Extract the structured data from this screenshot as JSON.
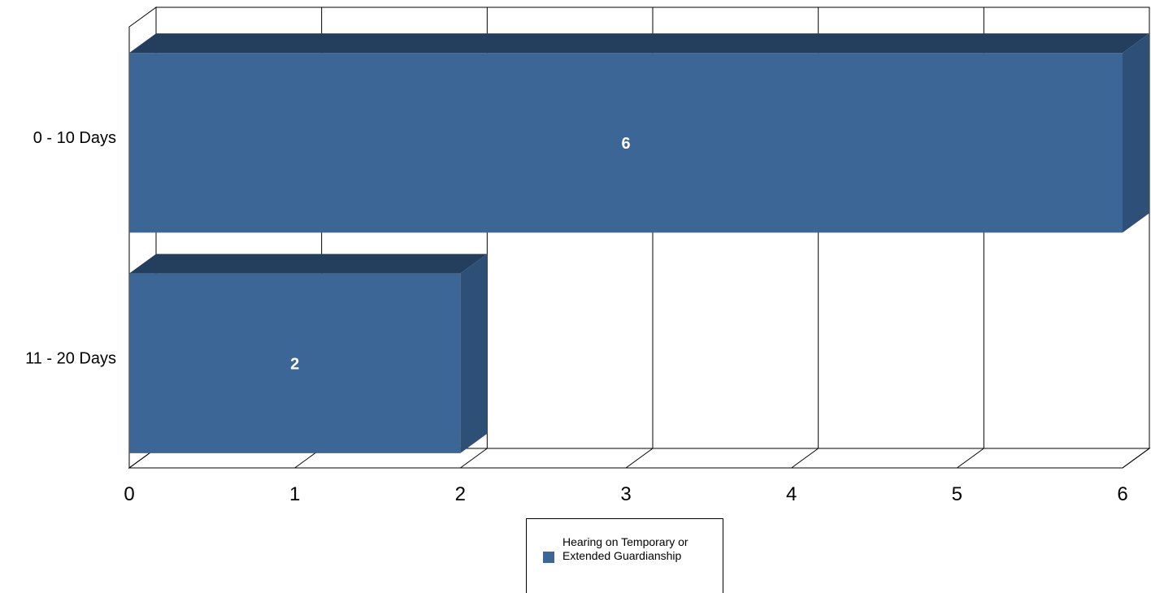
{
  "chart_data": {
    "type": "bar",
    "orientation": "horizontal",
    "style": "3d",
    "title": "",
    "xlabel": "",
    "ylabel": "",
    "categories": [
      "0 - 10 Days",
      "11 - 20 Days"
    ],
    "series": [
      {
        "name": "Hearing on Temporary or Extended Guardianship",
        "values": [
          6,
          2
        ],
        "color": "#3b6696"
      }
    ],
    "xlim": [
      0,
      6
    ],
    "xticks": [
      0,
      1,
      2,
      3,
      4,
      5,
      6
    ],
    "grid": true,
    "data_labels": true,
    "legend_position": "bottom"
  },
  "legend": {
    "label": "Hearing on Temporary or Extended Guardianship"
  }
}
